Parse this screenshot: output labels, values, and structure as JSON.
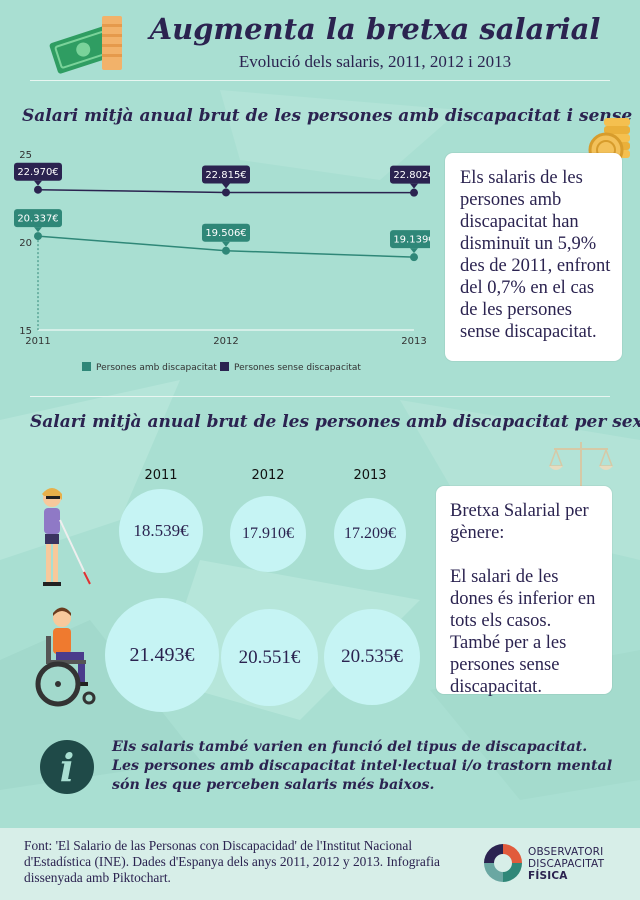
{
  "header": {
    "title": "Augmenta la bretxa salarial",
    "subtitle": "Evolució dels salaris, 2011, 2012 i 2013"
  },
  "section1": {
    "title": "Salari mitjà anual brut de les persones amb discapacitat i sense",
    "note": "Els salaris de les persones amb discapacitat han disminuït un 5,9% des de 2011, enfront del 0,7% en el cas de les persones sense discapacitat."
  },
  "section2": {
    "title": "Salari mitjà anual brut de les persones amb discapacitat per sexe",
    "years": [
      "2011",
      "2012",
      "2013"
    ],
    "women": [
      "18.539€",
      "17.910€",
      "17.209€"
    ],
    "men": [
      "21.493€",
      "20.551€",
      "20.535€"
    ],
    "note_title": "Bretxa Salarial per gènere:",
    "note_body": "El salari de les dones és inferior en tots els casos. També per a les persones sense discapacitat."
  },
  "info": {
    "icon_glyph": "i",
    "text": "Els salaris també varien en funció del tipus de discapacitat. Les persones amb discapacitat intel·lectual i/o trastorn mental són les que perceben salaris més baixos."
  },
  "footer": {
    "source": "Font: 'El Salario de las Personas con Discapacidad' de l'Institut Nacional d'Estadística (INE). Dades d'Espanya dels anys 2011, 2012 y 2013. Infografia dissenyada amb Piktochart.",
    "org_line1": "OBSERVATORI",
    "org_line2": "DISCAPACITAT",
    "org_line3": "FÍSICA"
  },
  "chart_data": {
    "type": "line",
    "x": [
      "2011",
      "2012",
      "2013"
    ],
    "ylim": [
      15,
      25
    ],
    "yticks": [
      "15",
      "20",
      "25"
    ],
    "series": [
      {
        "name": "Persones amb discapacitat",
        "values": [
          20.337,
          19.506,
          19.139
        ],
        "labels": [
          "20.337€",
          "19.506€",
          "19.139€"
        ],
        "color": "#2f8778"
      },
      {
        "name": "Persones sense discapacitat",
        "values": [
          22.97,
          22.815,
          22.802
        ],
        "labels": [
          "22.970€",
          "22.815€",
          "22.802€"
        ],
        "color": "#2b2350"
      }
    ],
    "grid": false,
    "legend": "bottom"
  },
  "colors": {
    "background": "#a9dfd2",
    "navy": "#2b2350",
    "teal": "#2f8778",
    "bubble": "#c6f4f4"
  },
  "icons": [
    "money-icon",
    "coins-icon",
    "scale-icon",
    "woman-with-cane-icon",
    "man-in-wheelchair-icon",
    "info-icon",
    "org-logo-icon"
  ]
}
